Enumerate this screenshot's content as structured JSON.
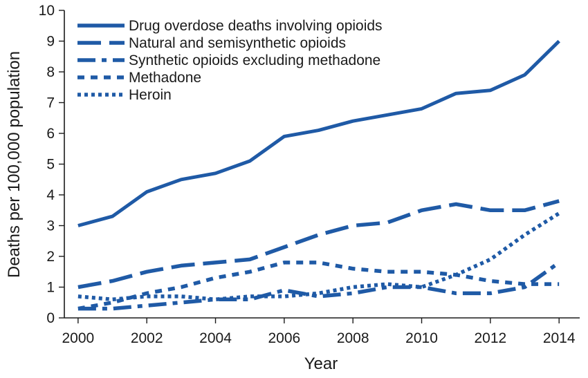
{
  "chart_data": {
    "type": "line",
    "title": "",
    "xlabel": "Year",
    "ylabel": "Deaths per 100,000 population",
    "xlim": [
      1999.6,
      2014.6
    ],
    "ylim": [
      0,
      10
    ],
    "x_ticks": [
      "2000",
      "2002",
      "2004",
      "2006",
      "2008",
      "2010",
      "2012",
      "2014"
    ],
    "y_ticks": [
      "0",
      "1",
      "2",
      "3",
      "4",
      "5",
      "6",
      "7",
      "8",
      "9",
      "10"
    ],
    "legend_placement": "top-left",
    "grid": false,
    "line_color": "#1f5aa6",
    "x": [
      2000,
      2001,
      2002,
      2003,
      2004,
      2005,
      2006,
      2007,
      2008,
      2009,
      2010,
      2011,
      2012,
      2013,
      2014
    ],
    "series": [
      {
        "name": "Drug overdose deaths involving opioids",
        "style": "solid",
        "values": [
          3.0,
          3.3,
          4.1,
          4.5,
          4.7,
          5.1,
          5.9,
          6.1,
          6.4,
          6.6,
          6.8,
          7.3,
          7.4,
          7.9,
          9.0
        ]
      },
      {
        "name": "Natural and semisynthetic opioids",
        "style": "long-dash",
        "values": [
          1.0,
          1.2,
          1.5,
          1.7,
          1.8,
          1.9,
          2.3,
          2.7,
          3.0,
          3.1,
          3.5,
          3.7,
          3.5,
          3.5,
          3.8
        ]
      },
      {
        "name": "Synthetic opioids excluding methadone",
        "style": "dash-dot",
        "values": [
          0.3,
          0.3,
          0.4,
          0.5,
          0.6,
          0.6,
          0.9,
          0.7,
          0.8,
          1.0,
          1.0,
          0.8,
          0.8,
          1.0,
          1.8
        ]
      },
      {
        "name": "Methadone",
        "style": "short-dash",
        "values": [
          0.3,
          0.5,
          0.8,
          1.0,
          1.3,
          1.5,
          1.8,
          1.8,
          1.6,
          1.5,
          1.5,
          1.4,
          1.2,
          1.1,
          1.1
        ]
      },
      {
        "name": "Heroin",
        "style": "dotted",
        "values": [
          0.7,
          0.6,
          0.7,
          0.7,
          0.6,
          0.7,
          0.7,
          0.8,
          1.0,
          1.1,
          1.0,
          1.4,
          1.9,
          2.7,
          3.4
        ]
      }
    ]
  }
}
